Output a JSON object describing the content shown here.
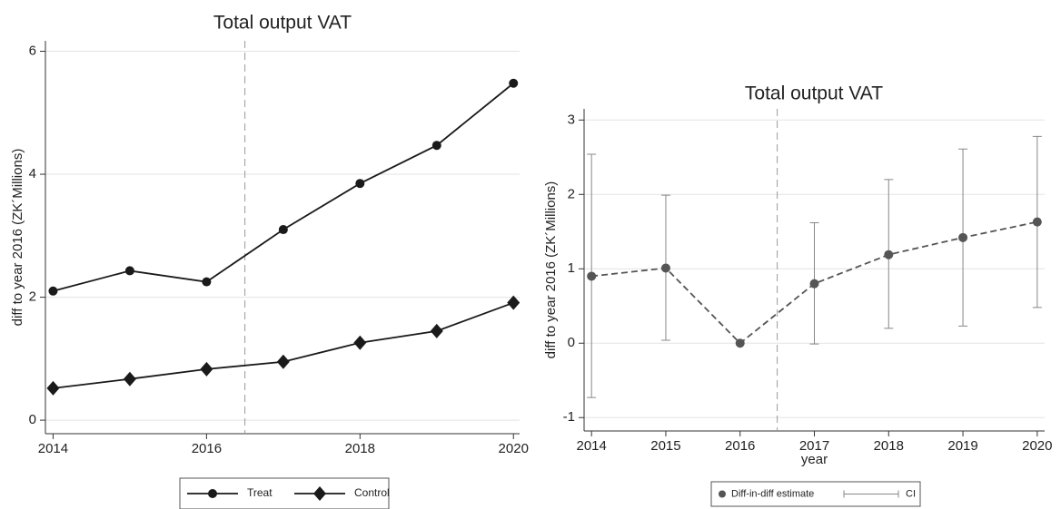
{
  "chart_data": [
    {
      "type": "line",
      "title": "Total output VAT",
      "ylabel": "diff to year 2016 (ZK´Millions)",
      "x": [
        2014,
        2015,
        2016,
        2017,
        2018,
        2019,
        2020
      ],
      "xlim": [
        2013.9,
        2020.08
      ],
      "xticks": [
        2014,
        2016,
        2018,
        2020
      ],
      "ylim": [
        -0.22,
        6.17
      ],
      "yticks": [
        0,
        2,
        4,
        6
      ],
      "grid": true,
      "vline": 2016.5,
      "legend": "bottom",
      "series": [
        {
          "name": "Treat",
          "color": "#1a1a1a",
          "marker": "circle",
          "linestyle": "solid",
          "values": [
            2.1,
            2.43,
            2.25,
            3.1,
            3.85,
            4.47,
            5.48
          ]
        },
        {
          "name": "Control",
          "color": "#1a1a1a",
          "marker": "diamond",
          "linestyle": "solid",
          "values": [
            0.52,
            0.67,
            0.83,
            0.95,
            1.26,
            1.45,
            1.91
          ]
        }
      ]
    },
    {
      "type": "line",
      "title": "Total output VAT",
      "ylabel": "diff to year 2016 (ZK´Millions)",
      "xlabel": "year",
      "x": [
        2014,
        2015,
        2016,
        2017,
        2018,
        2019,
        2020
      ],
      "xlim": [
        2013.9,
        2020.1
      ],
      "xticks": [
        2014,
        2015,
        2016,
        2017,
        2018,
        2019,
        2020
      ],
      "ylim": [
        -1.18,
        3.15
      ],
      "yticks": [
        -1,
        0,
        1,
        2,
        3
      ],
      "grid": true,
      "vline": 2016.5,
      "legend": "bottom",
      "series": [
        {
          "name": "Diff-in-diff estimate",
          "color": "#555555",
          "marker": "circle",
          "linestyle": "dashed",
          "values": [
            0.9,
            1.01,
            0,
            0.8,
            1.19,
            1.42,
            1.63
          ],
          "ci_name": "CI",
          "ci_color": "#888888",
          "lower": [
            -0.73,
            0.04,
            null,
            -0.01,
            0.2,
            0.23,
            0.48
          ],
          "upper": [
            2.54,
            1.99,
            null,
            1.62,
            2.2,
            2.61,
            2.78
          ]
        }
      ]
    }
  ]
}
